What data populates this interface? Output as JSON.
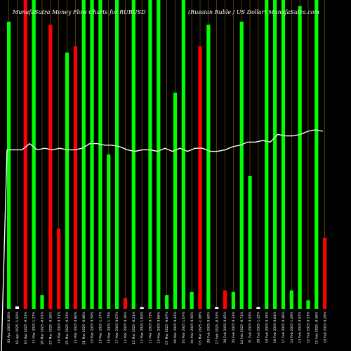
{
  "chart_data": {
    "type": "bar",
    "title_left": "MunafaSutra  Money Flow  Charts for RUBUSD",
    "title_right": "(Russian  Ruble   / US Dollar)  MunafaSutra.com",
    "categories": [
      "03 Apr 2025 0.00%",
      "02 Apr 2025 -1.92%",
      "01 Apr 2025 -0.53%",
      "31 Mar 2025 1.27%",
      "28 Mar 2025 -0.01%",
      "27 Mar 2025 -0.36%",
      "26 Mar 2025 0.51%",
      "25 Mar 2025 -0.23%",
      "24 Mar 2025 0.86%",
      "21 Mar 2025 -0.98%",
      "20 Mar 2025 0.59%",
      "19 Mar 2025 1.17%",
      "18 Mar 2025 1.73%",
      "17 Mar 2025 0.67%",
      "14 Mar 2025 0.36%",
      "13 Mar 2025 -0.21%",
      "12 Mar 2025 1.82%",
      "11 Mar 2025 0.73%",
      "10 Mar 2025 0.86%",
      "07 Mar 2025 -0.67%",
      "06 Mar 2025 0.42%",
      "05 Mar 2025 1.07%",
      "04 Mar 2025 0.56%",
      "03 Mar 2025 -1.08%",
      "28 Feb 2025 0.60%",
      "27 Feb 2025 -0.52%",
      "26 Feb 2025 0.45%",
      "25 Feb 2025 0.33%",
      "24 Feb 2025 -0.71%",
      "21 Feb 2025 0.93%",
      "20 Feb 2025 1.22%",
      "19 Feb 2025 0.15%",
      "18 Feb 2025 0.64%",
      "17 Feb 2025 0.38%",
      "14 Feb 2025 1.49%",
      "13 Feb 2025 0.97%",
      "12 Feb 2025 0.53%",
      "11 Feb 2025 -0.36%",
      "10 Feb 2025 0.29%"
    ],
    "bars": [
      {
        "value": 0.93,
        "color": "green"
      },
      {
        "value": 0.008,
        "color": "white"
      },
      {
        "value": 1.0,
        "color": "red"
      },
      {
        "value": 1.0,
        "color": "green"
      },
      {
        "value": 0.045,
        "color": "green"
      },
      {
        "value": 0.92,
        "color": "red"
      },
      {
        "value": 0.26,
        "color": "red"
      },
      {
        "value": 0.83,
        "color": "green"
      },
      {
        "value": 0.85,
        "color": "red"
      },
      {
        "value": 1.0,
        "color": "green"
      },
      {
        "value": 1.0,
        "color": "green"
      },
      {
        "value": 1.0,
        "color": "green"
      },
      {
        "value": 0.5,
        "color": "green"
      },
      {
        "value": 1.0,
        "color": "green"
      },
      {
        "value": 0.035,
        "color": "red"
      },
      {
        "value": 1.0,
        "color": "green"
      },
      {
        "value": 0.006,
        "color": "white"
      },
      {
        "value": 1.0,
        "color": "green"
      },
      {
        "value": 1.0,
        "color": "green"
      },
      {
        "value": 0.045,
        "color": "green"
      },
      {
        "value": 0.7,
        "color": "green"
      },
      {
        "value": 1.0,
        "color": "green"
      },
      {
        "value": 0.055,
        "color": "green"
      },
      {
        "value": 0.85,
        "color": "red"
      },
      {
        "value": 0.92,
        "color": "green"
      },
      {
        "value": 0.006,
        "color": "white"
      },
      {
        "value": 0.06,
        "color": "red"
      },
      {
        "value": 0.055,
        "color": "green"
      },
      {
        "value": 0.93,
        "color": "green"
      },
      {
        "value": 0.43,
        "color": "green"
      },
      {
        "value": 0.006,
        "color": "white"
      },
      {
        "value": 1.0,
        "color": "green"
      },
      {
        "value": 1.0,
        "color": "green"
      },
      {
        "value": 1.0,
        "color": "green"
      },
      {
        "value": 0.06,
        "color": "green"
      },
      {
        "value": 0.98,
        "color": "green"
      },
      {
        "value": 0.028,
        "color": "green"
      },
      {
        "value": 1.0,
        "color": "green"
      },
      {
        "value": 0.23,
        "color": "red"
      }
    ],
    "line": [
      0.515,
      0.515,
      0.515,
      0.535,
      0.515,
      0.52,
      0.515,
      0.52,
      0.515,
      0.515,
      0.52,
      0.535,
      0.535,
      0.53,
      0.53,
      0.525,
      0.515,
      0.51,
      0.515,
      0.515,
      0.51,
      0.52,
      0.51,
      0.52,
      0.51,
      0.52,
      0.52,
      0.51,
      0.51,
      0.515,
      0.525,
      0.53,
      0.54,
      0.54,
      0.545,
      0.54,
      0.565,
      0.56,
      0.56,
      0.565,
      0.575,
      0.58,
      0.575
    ],
    "line_start_value": 0.0,
    "ylim": [
      0,
      1
    ],
    "grid": true,
    "colors": {
      "background": "#000000",
      "green": "#00ff00",
      "red": "#ff0000",
      "white": "#ffffff",
      "grid": "#c8a000",
      "line": "#ffffff"
    }
  }
}
